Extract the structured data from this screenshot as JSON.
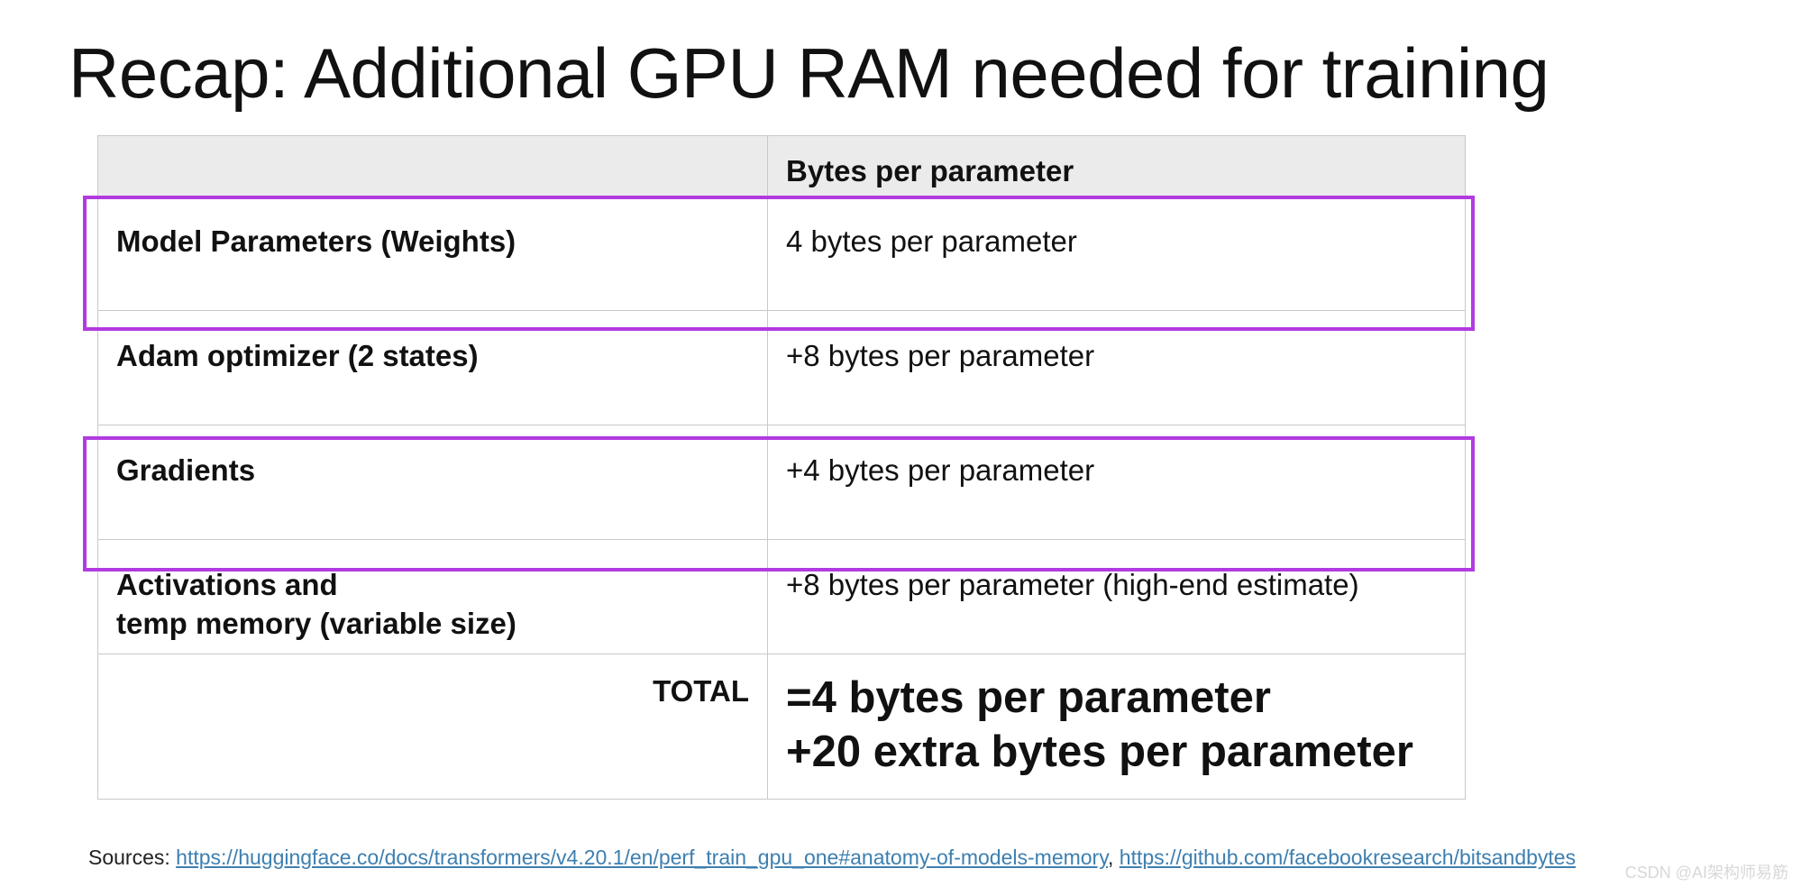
{
  "title": "Recap: Additional GPU RAM needed for training",
  "table": {
    "header": [
      "",
      "Bytes per parameter"
    ],
    "rows": [
      {
        "label": "Model Parameters (Weights)",
        "value": "4 bytes per parameter"
      },
      {
        "label": "Adam optimizer (2 states)",
        "value": "+8 bytes per parameter"
      },
      {
        "label": "Gradients",
        "value": "+4 bytes per parameter"
      },
      {
        "label_line1": "Activations and",
        "label_line2": "temp memory (variable size)",
        "value": "+8 bytes per parameter (high-end estimate)"
      }
    ],
    "total": {
      "label": "TOTAL",
      "line1": "=4 bytes per parameter",
      "line2": "+20 extra bytes per parameter"
    }
  },
  "highlights": {
    "color": "#b13be0",
    "rows": [
      "Model Parameters (Weights)",
      "Gradients"
    ]
  },
  "sources": {
    "label": "Sources:",
    "link1": "https://huggingface.co/docs/transformers/v4.20.1/en/perf_train_gpu_one#anatomy-of-models-memory",
    "separator": ",",
    "link2": "https://github.com/facebookresearch/bitsandbytes"
  },
  "watermark": "CSDN @AI架构师易筋"
}
